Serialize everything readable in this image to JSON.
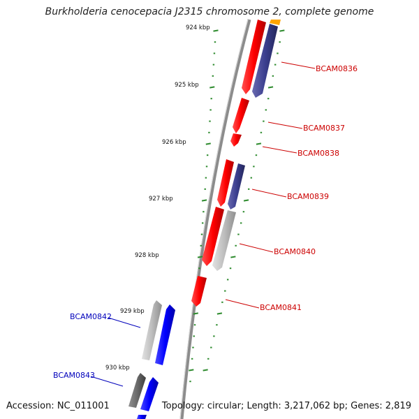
{
  "title": "Burkholderia cenocepacia J2315 chromosome 2, complete genome",
  "footer": {
    "accession": "Accession: NC_011001",
    "summary": "Topology: circular; Length: 3,217,062 bp; Genes: 2,819"
  },
  "scale_labels": [
    "924 kbp",
    "925 kbp",
    "926 kbp",
    "927 kbp",
    "928 kbp",
    "929 kbp",
    "930 kbp"
  ],
  "gene_labels": {
    "BCAM0836": "BCAM0836",
    "BCAM0837": "BCAM0837",
    "BCAM0838": "BCAM0838",
    "BCAM0839": "BCAM0839",
    "BCAM0840": "BCAM0840",
    "BCAM0841": "BCAM0841",
    "BCAM0842": "BCAM0842",
    "BCAM0843": "BCAM0843"
  },
  "colors": {
    "cds_red": "#ff0000",
    "cds_blue": "#0000ff",
    "cds_navy": "#3b3f8f",
    "cds_grey": "#b8b8b8",
    "cds_dark_grey": "#6a6a6a",
    "cds_orange": "#ffa500",
    "backbone": "#8c8c8c",
    "scale_ticks": "#2e8b2e",
    "label_red": "#cc0000",
    "label_blue": "#0000bb"
  }
}
